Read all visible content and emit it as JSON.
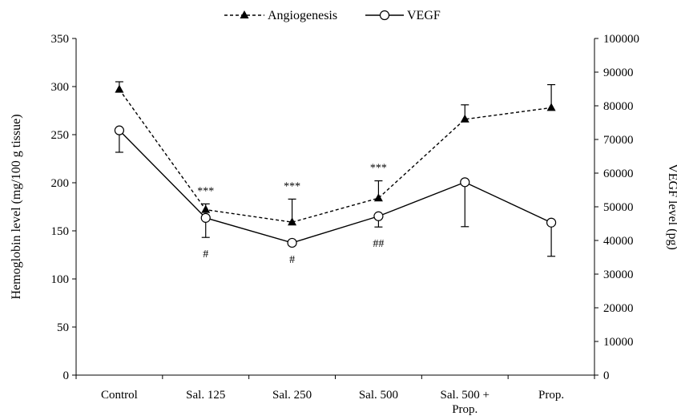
{
  "chart_data": {
    "type": "line",
    "categories": [
      [
        "Control"
      ],
      [
        "Sal. 125"
      ],
      [
        "Sal. 250"
      ],
      [
        "Sal. 500"
      ],
      [
        "Sal. 500 +",
        "Prop."
      ],
      [
        "Prop."
      ]
    ],
    "ylabel_left": "Hemoglobin level (mg/100 g tissue)",
    "ylabel_right": "VEGF level (pg)",
    "ylim_left": [
      0,
      350
    ],
    "yticks_left": [
      0,
      50,
      100,
      150,
      200,
      250,
      300,
      350
    ],
    "ylim_right": [
      0,
      100000
    ],
    "yticks_right": [
      0,
      10000,
      20000,
      30000,
      40000,
      50000,
      60000,
      70000,
      80000,
      90000,
      100000
    ],
    "legend_position": "top-center",
    "grid": false,
    "series": [
      {
        "name": "Angiogenesis",
        "axis": "left",
        "marker": "triangle",
        "line_style": "dashed",
        "values": [
          297,
          172,
          159,
          184,
          266,
          278
        ],
        "error": [
          8,
          6,
          24,
          18,
          15,
          24
        ],
        "annotations": [
          "",
          "***",
          "***",
          "***",
          "",
          ""
        ]
      },
      {
        "name": "VEGF",
        "axis": "right",
        "marker": "open-circle",
        "line_style": "solid",
        "values": [
          72700,
          46700,
          39300,
          47200,
          57300,
          45300
        ],
        "error": [
          6500,
          5800,
          0,
          3200,
          13200,
          10000
        ],
        "annotations": [
          "",
          "#",
          "#",
          "##",
          "",
          ""
        ]
      }
    ]
  }
}
